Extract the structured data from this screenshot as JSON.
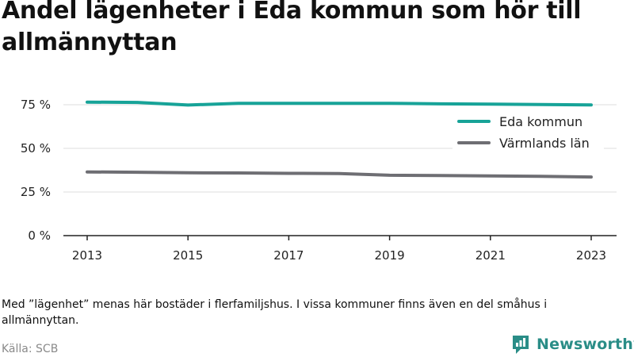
{
  "title": "Andel lägenheter i Eda kommun som hör till allmännyttan",
  "note": "Med ”lägenhet” menas här bostäder i flerfamiljshus. I vissa kommuner finns även en del småhus i allmännyttan.",
  "source": "Källa: SCB",
  "brand": {
    "name": "Newsworthy",
    "icon": "newsworthy-logo-icon",
    "color": "#2a8d87"
  },
  "chart_data": {
    "type": "line",
    "title": "Andel lägenheter i Eda kommun som hör till allmännyttan",
    "xlabel": "",
    "ylabel": "",
    "x": [
      2013,
      2014,
      2015,
      2016,
      2017,
      2018,
      2019,
      2020,
      2021,
      2022,
      2023
    ],
    "x_ticks": [
      2013,
      2015,
      2017,
      2019,
      2021,
      2023
    ],
    "y_ticks": [
      0,
      25,
      50,
      75
    ],
    "y_tick_labels": [
      "0 %",
      "25 %",
      "50 %",
      "75 %"
    ],
    "ylim": [
      0,
      80
    ],
    "grid": "horizontal",
    "legend_position": "top-right",
    "series": [
      {
        "name": "Eda kommun",
        "color": "#17a398",
        "values": [
          76.5,
          76.3,
          74.8,
          75.8,
          75.8,
          75.8,
          75.8,
          75.5,
          75.3,
          75.1,
          74.9
        ]
      },
      {
        "name": "Värmlands län",
        "color": "#6e6e73",
        "values": [
          36.5,
          36.3,
          36.0,
          35.9,
          35.7,
          35.6,
          34.6,
          34.4,
          34.2,
          34.0,
          33.6
        ]
      }
    ]
  }
}
